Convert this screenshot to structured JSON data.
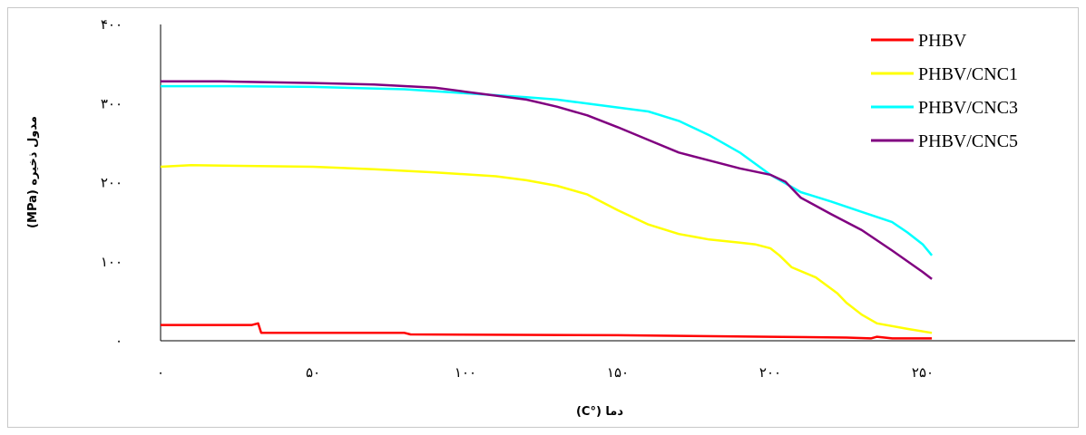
{
  "chart_data": {
    "type": "line",
    "title": "",
    "xlabel": "دما (°C)",
    "ylabel": "مدول ذخیره (MPa)",
    "xlim": [
      0,
      300
    ],
    "ylim": [
      0,
      400
    ],
    "grid": false,
    "legend_position": "top-right",
    "x_ticks": [
      0,
      50,
      100,
      150,
      200,
      250
    ],
    "x_tick_labels": [
      "۰",
      "۵۰",
      "۱۰۰",
      "۱۵۰",
      "۲۰۰",
      "۲۵۰"
    ],
    "y_ticks": [
      0,
      100,
      200,
      300,
      400
    ],
    "y_tick_labels": [
      "۰",
      "۱۰۰",
      "۲۰۰",
      "۳۰۰",
      "۴۰۰"
    ],
    "series": [
      {
        "name": "PHBV",
        "color": "#ff0000",
        "x": [
          0,
          30,
          32,
          33,
          80,
          82,
          150,
          200,
          225,
          233,
          235,
          240,
          253
        ],
        "y": [
          20,
          20,
          22,
          10,
          10,
          8,
          7,
          5,
          4,
          3,
          5,
          3,
          3
        ]
      },
      {
        "name": "PHBV/CNC1",
        "color": "#ffff00",
        "x": [
          0,
          10,
          50,
          70,
          90,
          110,
          120,
          130,
          140,
          150,
          160,
          170,
          180,
          190,
          195,
          200,
          203,
          207,
          215,
          222,
          225,
          230,
          235,
          245,
          253
        ],
        "y": [
          220,
          222,
          220,
          217,
          213,
          208,
          203,
          196,
          185,
          165,
          147,
          135,
          128,
          124,
          122,
          117,
          108,
          93,
          80,
          60,
          48,
          33,
          22,
          15,
          10
        ]
      },
      {
        "name": "PHBV/CNC3",
        "color": "#00ffff",
        "x": [
          0,
          20,
          50,
          80,
          100,
          120,
          130,
          140,
          160,
          170,
          180,
          190,
          200,
          210,
          220,
          230,
          240,
          245,
          250,
          253
        ],
        "y": [
          322,
          322,
          321,
          318,
          313,
          308,
          305,
          300,
          290,
          278,
          260,
          238,
          210,
          188,
          176,
          163,
          150,
          137,
          122,
          108
        ]
      },
      {
        "name": "PHBV/CNC5",
        "color": "#800080",
        "x": [
          0,
          20,
          50,
          70,
          90,
          100,
          120,
          130,
          140,
          150,
          160,
          170,
          180,
          190,
          200,
          205,
          210,
          220,
          230,
          240,
          250,
          253
        ],
        "y": [
          328,
          328,
          326,
          324,
          320,
          315,
          305,
          296,
          285,
          270,
          254,
          238,
          228,
          218,
          210,
          201,
          181,
          160,
          140,
          114,
          87,
          78
        ]
      }
    ]
  }
}
